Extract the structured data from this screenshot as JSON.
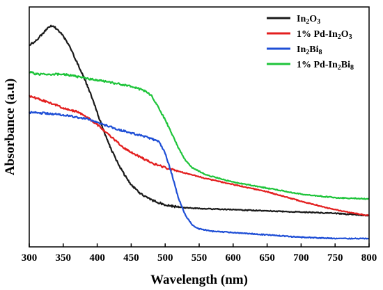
{
  "chart_data": {
    "type": "line",
    "xlabel": "Wavelength (nm)",
    "ylabel": "Absorbance (a.u)",
    "xlim": [
      300,
      800
    ],
    "ylim": [
      0,
      1
    ],
    "x_ticks": [
      300,
      350,
      400,
      450,
      500,
      550,
      600,
      650,
      700,
      750,
      800
    ],
    "y_ticks": [],
    "legend_position": "top-right",
    "series": [
      {
        "name": "In2O3",
        "legend_parts": [
          [
            "In",
            false
          ],
          [
            "2",
            true
          ],
          [
            "O",
            false
          ],
          [
            "3",
            true
          ]
        ],
        "color": "#1a1a1a",
        "x": [
          300,
          310,
          320,
          330,
          335,
          340,
          350,
          360,
          370,
          380,
          390,
          400,
          410,
          420,
          430,
          440,
          450,
          460,
          470,
          480,
          490,
          500,
          520,
          550,
          600,
          650,
          700,
          750,
          800
        ],
        "y": [
          0.84,
          0.86,
          0.89,
          0.92,
          0.92,
          0.91,
          0.88,
          0.83,
          0.77,
          0.71,
          0.64,
          0.56,
          0.48,
          0.41,
          0.35,
          0.3,
          0.26,
          0.23,
          0.21,
          0.195,
          0.185,
          0.175,
          0.165,
          0.16,
          0.155,
          0.15,
          0.145,
          0.14,
          0.13
        ]
      },
      {
        "name": "1% Pd-In2O3",
        "legend_parts": [
          [
            "1% Pd-In",
            false
          ],
          [
            "2",
            true
          ],
          [
            "O",
            false
          ],
          [
            "3",
            true
          ]
        ],
        "color": "#e31e1e",
        "x": [
          300,
          310,
          320,
          340,
          360,
          370,
          380,
          400,
          420,
          440,
          460,
          480,
          500,
          520,
          540,
          560,
          600,
          650,
          700,
          750,
          800
        ],
        "y": [
          0.63,
          0.62,
          0.61,
          0.59,
          0.57,
          0.565,
          0.55,
          0.51,
          0.46,
          0.41,
          0.38,
          0.35,
          0.33,
          0.315,
          0.3,
          0.285,
          0.26,
          0.23,
          0.19,
          0.155,
          0.13
        ]
      },
      {
        "name": "In2Bi8",
        "legend_parts": [
          [
            "In",
            false
          ],
          [
            "2",
            true
          ],
          [
            "Bi",
            false
          ],
          [
            "8",
            true
          ]
        ],
        "color": "#1f4fd6",
        "x": [
          300,
          310,
          330,
          350,
          370,
          390,
          410,
          430,
          450,
          470,
          480,
          490,
          500,
          510,
          520,
          530,
          540,
          550,
          570,
          600,
          650,
          700,
          750,
          800
        ],
        "y": [
          0.56,
          0.56,
          0.555,
          0.55,
          0.54,
          0.53,
          0.51,
          0.49,
          0.475,
          0.46,
          0.45,
          0.44,
          0.39,
          0.3,
          0.2,
          0.13,
          0.09,
          0.075,
          0.065,
          0.06,
          0.05,
          0.04,
          0.035,
          0.035
        ]
      },
      {
        "name": "1% Pd-In2Bi8",
        "legend_parts": [
          [
            "1% Pd-In",
            false
          ],
          [
            "2",
            true
          ],
          [
            "Bi",
            false
          ],
          [
            "8",
            true
          ]
        ],
        "color": "#1ec43a",
        "x": [
          300,
          310,
          330,
          350,
          370,
          390,
          410,
          430,
          450,
          470,
          480,
          490,
          500,
          510,
          520,
          530,
          540,
          560,
          600,
          650,
          700,
          750,
          800
        ],
        "y": [
          0.73,
          0.72,
          0.72,
          0.72,
          0.71,
          0.7,
          0.69,
          0.68,
          0.67,
          0.65,
          0.63,
          0.58,
          0.53,
          0.47,
          0.41,
          0.36,
          0.33,
          0.3,
          0.27,
          0.245,
          0.22,
          0.205,
          0.2
        ]
      }
    ]
  }
}
